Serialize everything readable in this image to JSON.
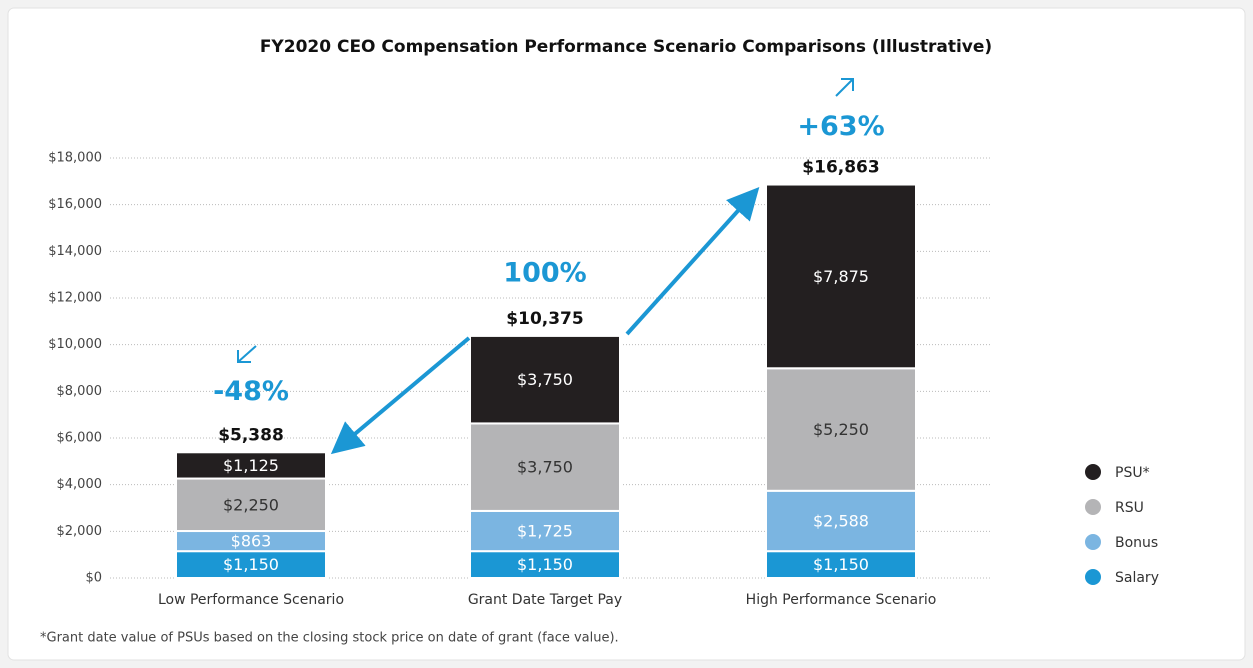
{
  "chart_data": {
    "type": "stacked_bar",
    "title": "FY2020 CEO Compensation Performance Scenario Comparisons (Illustrative)",
    "categories": [
      "Low Performance Scenario",
      "Grant Date Target Pay",
      "High Performance Scenario"
    ],
    "series": [
      {
        "name": "Salary",
        "color": "#1b97d4",
        "text_color": "#ffffff",
        "values": [
          1150,
          1150,
          1150
        ],
        "value_labels": [
          "$1,150",
          "$1,150",
          "$1,150"
        ]
      },
      {
        "name": "Bonus",
        "color": "#7bb5e1",
        "text_color": "#ffffff",
        "values": [
          863,
          1725,
          2588
        ],
        "value_labels": [
          "$863",
          "$1,725",
          "$2,588"
        ]
      },
      {
        "name": "RSU",
        "color": "#b4b4b6",
        "text_color": "#333333",
        "values": [
          2250,
          3750,
          5250
        ],
        "value_labels": [
          "$2,250",
          "$3,750",
          "$5,250"
        ]
      },
      {
        "name": "PSU*",
        "color": "#231f20",
        "text_color": "#ffffff",
        "values": [
          1125,
          3750,
          7875
        ],
        "value_labels": [
          "$1,125",
          "$3,750",
          "$7,875"
        ]
      }
    ],
    "totals": {
      "values": [
        5388,
        10375,
        16863
      ],
      "value_labels": [
        "$5,388",
        "$10,375",
        "$16,863"
      ]
    },
    "change_labels": [
      "-48%",
      "100%",
      "+63%"
    ],
    "ylim": [
      0,
      18000
    ],
    "yticks": [
      {
        "value": 0,
        "label": "$0"
      },
      {
        "value": 2000,
        "label": "$2,000"
      },
      {
        "value": 4000,
        "label": "$4,000"
      },
      {
        "value": 6000,
        "label": "$6,000"
      },
      {
        "value": 8000,
        "label": "$8,000"
      },
      {
        "value": 10000,
        "label": "$10,000"
      },
      {
        "value": 12000,
        "label": "$12,000"
      },
      {
        "value": 14000,
        "label": "$14,000"
      },
      {
        "value": 16000,
        "label": "$16,000"
      },
      {
        "value": 18000,
        "label": "$18,000"
      }
    ],
    "grid": true,
    "legend": "right",
    "footnote": "*Grant date value of PSUs based on the closing stock price on date of grant (face value)."
  }
}
